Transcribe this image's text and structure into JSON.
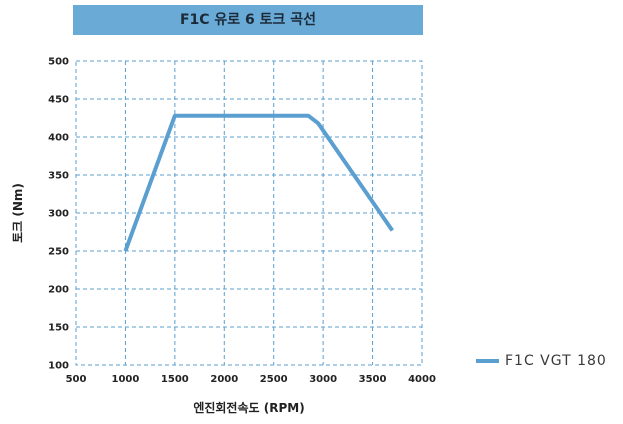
{
  "chart_data": {
    "type": "line",
    "title": "F1C 유로 6 토크 곡선",
    "xlabel": "엔진회전속도 (RPM)",
    "ylabel": "토크 (Nm)",
    "xlim": [
      500,
      4000
    ],
    "ylim": [
      100,
      500
    ],
    "x_ticks": [
      "500",
      "1000",
      "1500",
      "2000",
      "2500",
      "3000",
      "3500",
      "4000"
    ],
    "y_ticks": [
      "100",
      "150",
      "200",
      "250",
      "300",
      "350",
      "400",
      "450",
      "500"
    ],
    "grid": true,
    "legend_position": "right",
    "series": [
      {
        "name": "F1C VGT 180",
        "color": "#5b9fd0",
        "x": [
          1000,
          1500,
          2850,
          2950,
          3700
        ],
        "y": [
          250,
          428,
          428,
          418,
          277
        ]
      }
    ]
  }
}
